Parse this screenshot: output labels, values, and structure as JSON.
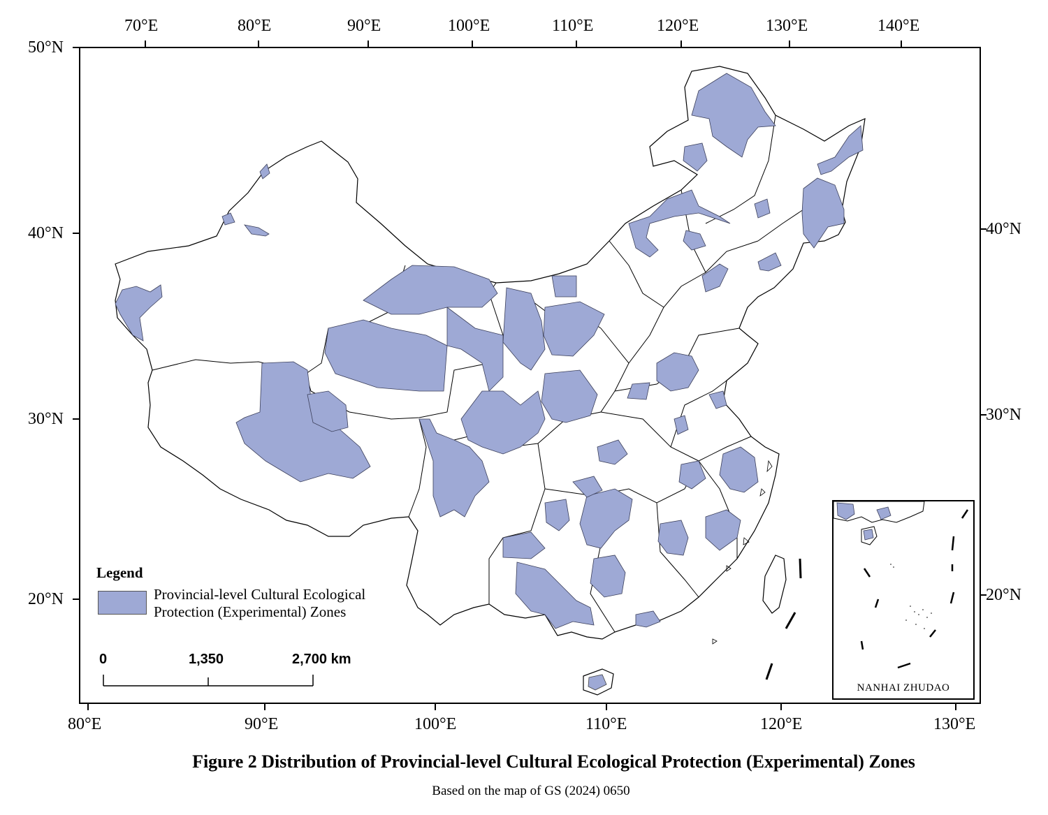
{
  "top_lon_labels": [
    "70°E",
    "80°E",
    "90°E",
    "100°E",
    "110°E",
    "120°E",
    "130°E",
    "140°E"
  ],
  "bottom_lon_labels": [
    "80°E",
    "90°E",
    "100°E",
    "110°E",
    "120°E",
    "130°E"
  ],
  "left_lat_labels": [
    "50°N",
    "40°N",
    "30°N",
    "20°N"
  ],
  "right_lat_labels": [
    "40°N",
    "30°N",
    "20°N"
  ],
  "legend": {
    "title": "Legend",
    "item_line1": "Provincial-level Cultural Ecological",
    "item_line2": "Protection (Experimental) Zones",
    "fill_color": "#9ea9d5"
  },
  "scale_bar": {
    "start": "0",
    "mid": "1,350",
    "end": "2,700 km"
  },
  "inset": {
    "label": "NANHAI ZHUDAO"
  },
  "caption": {
    "figure_number": "Figure 2",
    "title": "Distribution of Provincial-level Cultural Ecological Protection (Experimental) Zones"
  },
  "source_note": "Based on  the map of GS (2024) 0650",
  "colors": {
    "zone_fill": "#9ea9d5",
    "boundary": "#000000",
    "background": "#ffffff"
  }
}
